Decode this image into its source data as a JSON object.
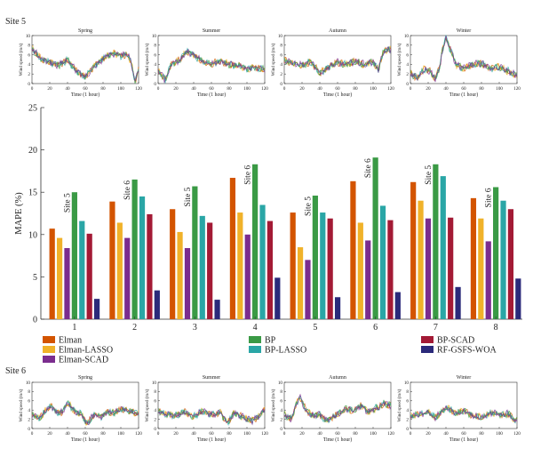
{
  "site5_label": "Site 5",
  "site6_label": "Site 6",
  "colors": {
    "Elman": "#d35400",
    "Elman-LASSO": "#f0b22a",
    "Elman-SCAD": "#7b2d8e",
    "BP": "#3a9a45",
    "BP-LASSO": "#2aa6a6",
    "BP-SCAD": "#a31a35",
    "RF-GSFS-WOA": "#2b2a7a"
  },
  "chart_data": [
    {
      "id": "site5-spring",
      "type": "line",
      "title": "Spring",
      "xlabel": "Time (1 hour)",
      "ylabel": "Wind speed (m/s)",
      "xlim": [
        0,
        120
      ],
      "ylim": [
        0,
        10
      ],
      "xticks": [
        "0",
        "20",
        "40",
        "60",
        "80",
        "100",
        "120"
      ],
      "yticks": [
        "0",
        "2",
        "4",
        "6",
        "8",
        "10"
      ],
      "profile": [
        [
          0,
          7.2
        ],
        [
          10,
          5.2
        ],
        [
          20,
          4.5
        ],
        [
          30,
          3.8
        ],
        [
          40,
          5.0
        ],
        [
          50,
          2.6
        ],
        [
          60,
          1.5
        ],
        [
          70,
          3.6
        ],
        [
          80,
          5.2
        ],
        [
          90,
          6.4
        ],
        [
          100,
          5.8
        ],
        [
          108,
          6.0
        ],
        [
          112,
          4.2
        ],
        [
          116,
          0.5
        ],
        [
          120,
          3.0
        ]
      ]
    },
    {
      "id": "site5-summer",
      "type": "line",
      "title": "Summer",
      "xlabel": "Time (1 hour)",
      "ylabel": "Wind speed (m/s)",
      "xlim": [
        0,
        120
      ],
      "ylim": [
        0,
        10
      ],
      "xticks": [
        "0",
        "20",
        "40",
        "60",
        "80",
        "100",
        "120"
      ],
      "yticks": [
        "0",
        "2",
        "4",
        "6",
        "8",
        "10"
      ],
      "profile": [
        [
          0,
          2.6
        ],
        [
          8,
          0.8
        ],
        [
          15,
          4.0
        ],
        [
          25,
          5.0
        ],
        [
          32,
          6.8
        ],
        [
          40,
          6.0
        ],
        [
          50,
          4.6
        ],
        [
          60,
          4.2
        ],
        [
          70,
          4.6
        ],
        [
          80,
          4.0
        ],
        [
          90,
          3.8
        ],
        [
          100,
          3.0
        ],
        [
          110,
          3.4
        ],
        [
          120,
          3.0
        ]
      ]
    },
    {
      "id": "site5-autumn",
      "type": "line",
      "title": "Autumn",
      "xlabel": "Time (1 hour)",
      "ylabel": "Wind speed (m/s)",
      "xlim": [
        0,
        120
      ],
      "ylim": [
        0,
        10
      ],
      "xticks": [
        "0",
        "20",
        "40",
        "60",
        "80",
        "100",
        "120"
      ],
      "yticks": [
        "0",
        "2",
        "4",
        "6",
        "8",
        "10"
      ],
      "profile": [
        [
          0,
          4.8
        ],
        [
          10,
          4.2
        ],
        [
          20,
          3.8
        ],
        [
          30,
          4.5
        ],
        [
          40,
          2.2
        ],
        [
          50,
          3.5
        ],
        [
          60,
          4.4
        ],
        [
          70,
          4.0
        ],
        [
          80,
          4.6
        ],
        [
          90,
          4.0
        ],
        [
          100,
          4.5
        ],
        [
          106,
          3.0
        ],
        [
          112,
          6.8
        ],
        [
          120,
          7.0
        ]
      ]
    },
    {
      "id": "site5-winter",
      "type": "line",
      "title": "Winter",
      "xlabel": "Time (1 hour)",
      "ylabel": "Wind speed (m/s)",
      "xlim": [
        0,
        120
      ],
      "ylim": [
        0,
        10
      ],
      "xticks": [
        "0",
        "20",
        "40",
        "60",
        "80",
        "100",
        "120"
      ],
      "yticks": [
        "0",
        "2",
        "4",
        "6",
        "8",
        "10"
      ],
      "profile": [
        [
          0,
          2.2
        ],
        [
          8,
          1.0
        ],
        [
          15,
          3.0
        ],
        [
          22,
          2.6
        ],
        [
          28,
          1.0
        ],
        [
          33,
          3.5
        ],
        [
          36,
          7.0
        ],
        [
          40,
          9.5
        ],
        [
          45,
          7.0
        ],
        [
          52,
          3.8
        ],
        [
          60,
          3.2
        ],
        [
          70,
          4.0
        ],
        [
          80,
          4.2
        ],
        [
          90,
          3.0
        ],
        [
          100,
          3.5
        ],
        [
          110,
          2.6
        ],
        [
          120,
          1.5
        ]
      ]
    },
    {
      "id": "mape-bars",
      "type": "bar",
      "ylabel": "MAPE (%)",
      "ylim": [
        0,
        25
      ],
      "yticks": [
        "0",
        "5",
        "10",
        "15",
        "20",
        "25"
      ],
      "categories": [
        "1",
        "2",
        "3",
        "4",
        "5",
        "6",
        "7",
        "8"
      ],
      "site_labels": [
        "Site 5",
        "Site 6",
        "Site 5",
        "Site 6",
        "Site 5",
        "Site 6",
        "Site 5",
        "Site 6"
      ],
      "legend_placement": "bottom",
      "series": [
        {
          "name": "Elman",
          "values": [
            10.7,
            13.9,
            13.0,
            16.7,
            12.6,
            16.3,
            16.2,
            14.3
          ]
        },
        {
          "name": "Elman-LASSO",
          "values": [
            9.6,
            11.4,
            10.3,
            12.6,
            8.5,
            11.4,
            14.0,
            11.9
          ]
        },
        {
          "name": "Elman-SCAD",
          "values": [
            8.4,
            9.6,
            8.4,
            10.0,
            7.0,
            9.3,
            11.9,
            9.2
          ]
        },
        {
          "name": "BP",
          "values": [
            15.0,
            16.5,
            15.7,
            18.3,
            14.6,
            19.1,
            18.3,
            15.6
          ]
        },
        {
          "name": "BP-LASSO",
          "values": [
            11.6,
            14.5,
            12.2,
            13.5,
            12.6,
            13.4,
            16.9,
            14.0
          ]
        },
        {
          "name": "BP-SCAD",
          "values": [
            10.1,
            12.4,
            11.4,
            11.6,
            11.9,
            11.7,
            12.0,
            13.0
          ]
        },
        {
          "name": "RF-GSFS-WOA",
          "values": [
            2.4,
            3.4,
            2.3,
            4.9,
            2.6,
            3.2,
            3.8,
            4.8
          ]
        }
      ]
    },
    {
      "id": "site6-spring",
      "type": "line",
      "title": "Spring",
      "xlabel": "Time (1 hour)",
      "ylabel": "Wind speed (m/s)",
      "xlim": [
        0,
        120
      ],
      "ylim": [
        0,
        10
      ],
      "xticks": [
        "0",
        "20",
        "40",
        "60",
        "80",
        "100",
        "120"
      ],
      "yticks": [
        "0",
        "2",
        "4",
        "6",
        "8",
        "10"
      ],
      "profile": [
        [
          0,
          3.0
        ],
        [
          8,
          2.2
        ],
        [
          15,
          3.8
        ],
        [
          22,
          4.8
        ],
        [
          28,
          3.5
        ],
        [
          34,
          3.6
        ],
        [
          40,
          5.6
        ],
        [
          48,
          3.8
        ],
        [
          55,
          3.2
        ],
        [
          62,
          1.0
        ],
        [
          70,
          3.0
        ],
        [
          78,
          2.5
        ],
        [
          85,
          3.6
        ],
        [
          92,
          3.4
        ],
        [
          100,
          4.2
        ],
        [
          110,
          3.8
        ],
        [
          120,
          3.2
        ]
      ]
    },
    {
      "id": "site6-summer",
      "type": "line",
      "title": "Summer",
      "xlabel": "Time (1 hour)",
      "ylabel": "Wind speed (m/s)",
      "xlim": [
        0,
        120
      ],
      "ylim": [
        0,
        10
      ],
      "xticks": [
        "0",
        "20",
        "40",
        "60",
        "80",
        "100",
        "120"
      ],
      "yticks": [
        "0",
        "2",
        "4",
        "6",
        "8",
        "10"
      ],
      "profile": [
        [
          0,
          3.8
        ],
        [
          10,
          3.0
        ],
        [
          20,
          2.8
        ],
        [
          30,
          3.6
        ],
        [
          40,
          2.6
        ],
        [
          50,
          3.8
        ],
        [
          60,
          3.0
        ],
        [
          70,
          3.4
        ],
        [
          78,
          1.2
        ],
        [
          85,
          3.2
        ],
        [
          95,
          2.6
        ],
        [
          105,
          1.6
        ],
        [
          112,
          2.4
        ],
        [
          120,
          4.2
        ]
      ]
    },
    {
      "id": "site6-autumn",
      "type": "line",
      "title": "Autumn",
      "xlabel": "Time (1 hour)",
      "ylabel": "Wind speed (m/s)",
      "xlim": [
        0,
        120
      ],
      "ylim": [
        0,
        10
      ],
      "xticks": [
        "0",
        "20",
        "40",
        "60",
        "80",
        "100",
        "120"
      ],
      "yticks": [
        "0",
        "2",
        "4",
        "6",
        "8",
        "10"
      ],
      "profile": [
        [
          0,
          3.0
        ],
        [
          8,
          2.0
        ],
        [
          14,
          5.6
        ],
        [
          18,
          6.6
        ],
        [
          25,
          3.8
        ],
        [
          32,
          2.8
        ],
        [
          40,
          3.0
        ],
        [
          48,
          1.6
        ],
        [
          55,
          2.6
        ],
        [
          62,
          3.2
        ],
        [
          70,
          4.4
        ],
        [
          78,
          3.8
        ],
        [
          86,
          5.0
        ],
        [
          95,
          3.5
        ],
        [
          105,
          4.6
        ],
        [
          112,
          5.4
        ],
        [
          120,
          5.0
        ]
      ]
    },
    {
      "id": "site6-winter",
      "type": "line",
      "title": "Winter",
      "xlabel": "Time (1 hour)",
      "ylabel": "Wind speed (m/s)",
      "xlim": [
        0,
        120
      ],
      "ylim": [
        0,
        10
      ],
      "xticks": [
        "0",
        "20",
        "40",
        "60",
        "80",
        "100",
        "120"
      ],
      "yticks": [
        "0",
        "2",
        "4",
        "6",
        "8",
        "10"
      ],
      "profile": [
        [
          0,
          2.6
        ],
        [
          10,
          3.0
        ],
        [
          20,
          3.6
        ],
        [
          28,
          2.4
        ],
        [
          35,
          3.6
        ],
        [
          42,
          4.6
        ],
        [
          50,
          3.4
        ],
        [
          60,
          3.8
        ],
        [
          70,
          2.8
        ],
        [
          80,
          2.4
        ],
        [
          90,
          3.4
        ],
        [
          100,
          3.0
        ],
        [
          110,
          3.2
        ],
        [
          118,
          1.6
        ],
        [
          120,
          2.0
        ]
      ]
    }
  ]
}
